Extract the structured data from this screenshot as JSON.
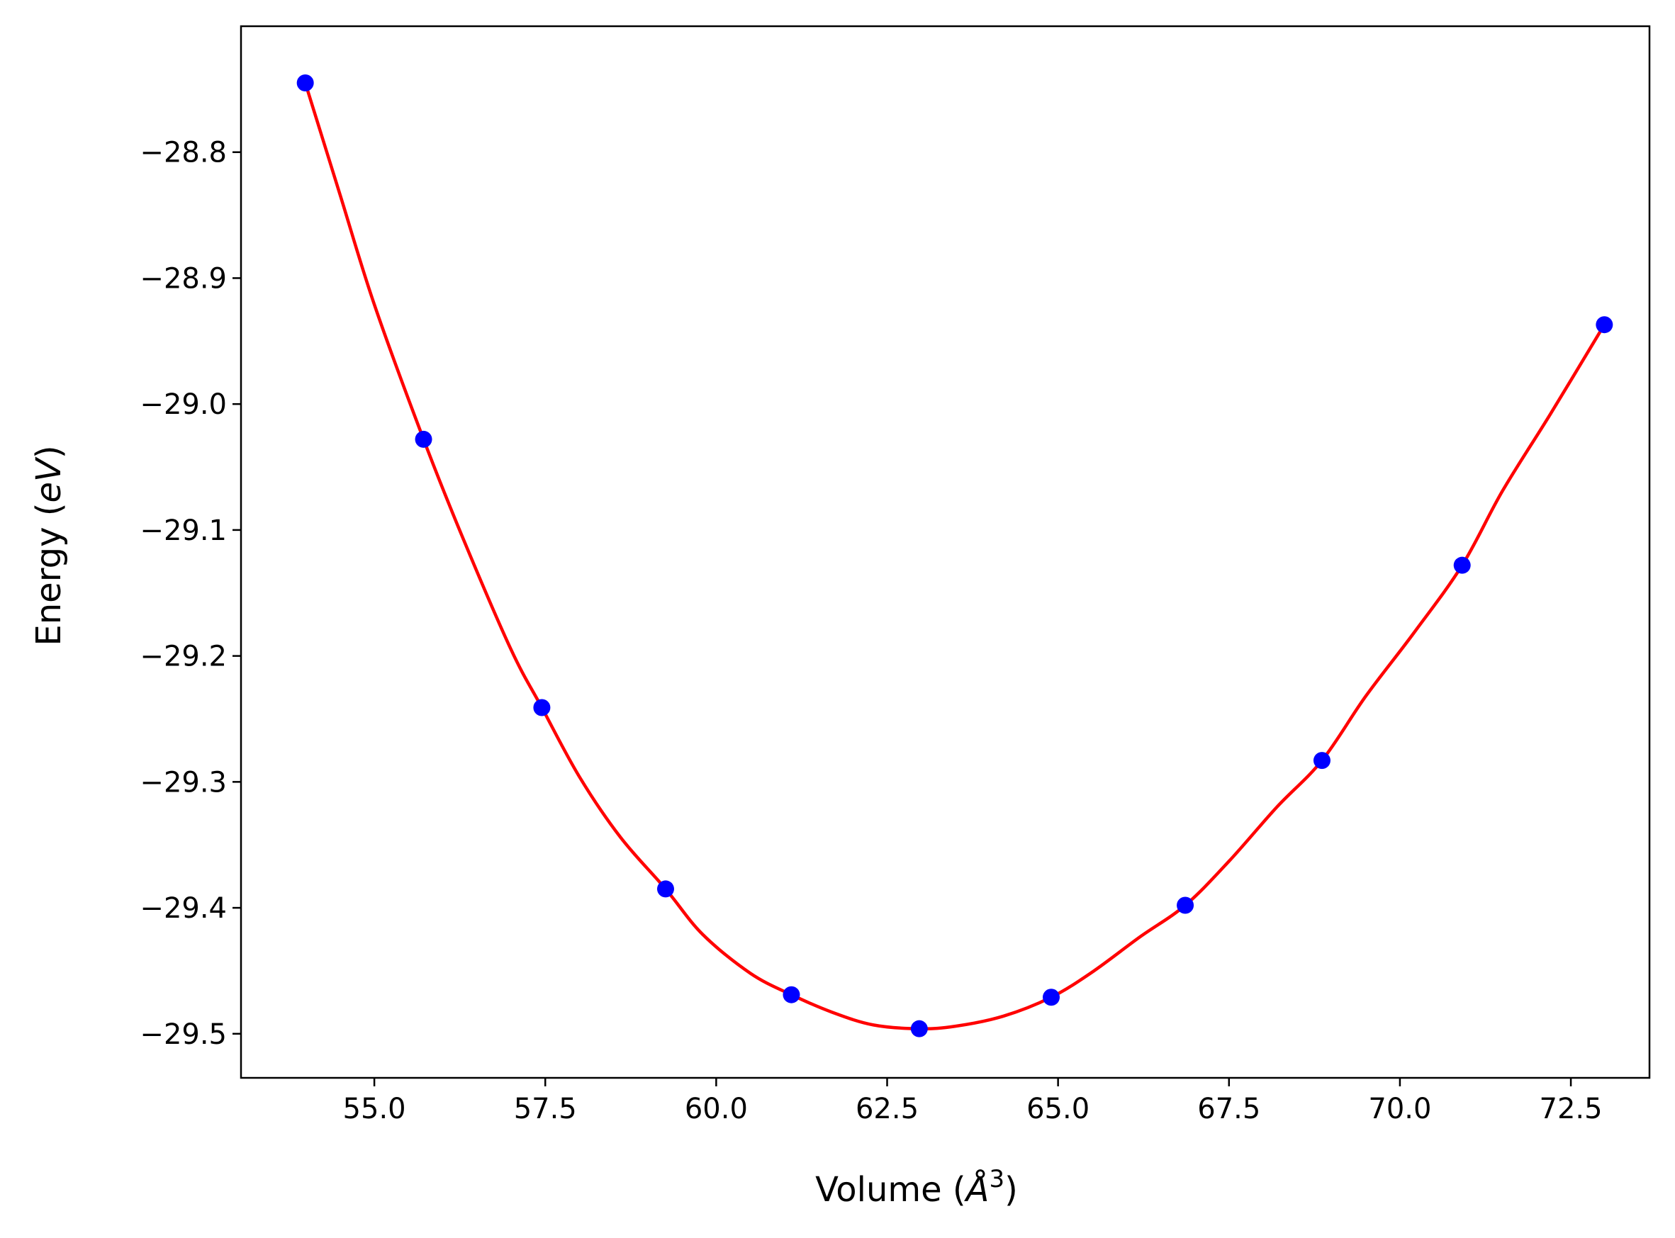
{
  "chart_data": {
    "type": "scatter",
    "title": "",
    "xlabel": "Volume (",
    "xlabel_symbol": "Å",
    "xlabel_exponent": "3",
    "xlabel_close": ")",
    "ylabel": "Energy (",
    "ylabel_unit": "eV",
    "ylabel_close": ")",
    "xlim": [
      53.05,
      73.65
    ],
    "ylim": [
      -29.535,
      -28.7
    ],
    "x_ticks": [
      55.0,
      57.5,
      60.0,
      62.5,
      65.0,
      67.5,
      70.0,
      72.5
    ],
    "x_tick_labels": [
      "55.0",
      "57.5",
      "60.0",
      "62.5",
      "65.0",
      "67.5",
      "70.0",
      "72.5"
    ],
    "y_ticks": [
      -28.8,
      -28.9,
      -29.0,
      -29.1,
      -29.2,
      -29.3,
      -29.4,
      -29.5
    ],
    "y_tick_labels": [
      "−28.8",
      "−28.9",
      "−29.0",
      "−29.1",
      "−29.2",
      "−29.3",
      "−29.4",
      "−29.5"
    ],
    "grid": false,
    "series": [
      {
        "kind": "points",
        "color": "#0000ff",
        "x": [
          53.99,
          55.72,
          57.45,
          59.26,
          61.1,
          62.97,
          64.9,
          66.86,
          68.86,
          70.91,
          72.99
        ],
        "y": [
          -28.745,
          -29.028,
          -29.241,
          -29.385,
          -29.469,
          -29.496,
          -29.471,
          -29.398,
          -29.283,
          -29.128,
          -28.937
        ]
      },
      {
        "kind": "fit-curve",
        "color": "#ff0000",
        "x": [
          53.99,
          54.5,
          55.0,
          55.72,
          56.3,
          57.0,
          57.45,
          58.0,
          58.6,
          59.26,
          59.8,
          60.5,
          61.1,
          61.7,
          62.3,
          62.97,
          63.5,
          64.2,
          64.9,
          65.5,
          66.2,
          66.86,
          67.5,
          68.2,
          68.86,
          69.5,
          70.2,
          70.91,
          71.5,
          72.2,
          72.99
        ],
        "y": [
          -28.745,
          -28.834,
          -28.921,
          -29.028,
          -29.107,
          -29.195,
          -29.241,
          -29.296,
          -29.344,
          -29.385,
          -29.421,
          -29.452,
          -29.469,
          -29.483,
          -29.493,
          -29.496,
          -29.494,
          -29.486,
          -29.471,
          -29.451,
          -29.423,
          -29.398,
          -29.363,
          -29.32,
          -29.283,
          -29.232,
          -29.182,
          -29.128,
          -29.069,
          -29.008,
          -28.937
        ]
      }
    ]
  }
}
